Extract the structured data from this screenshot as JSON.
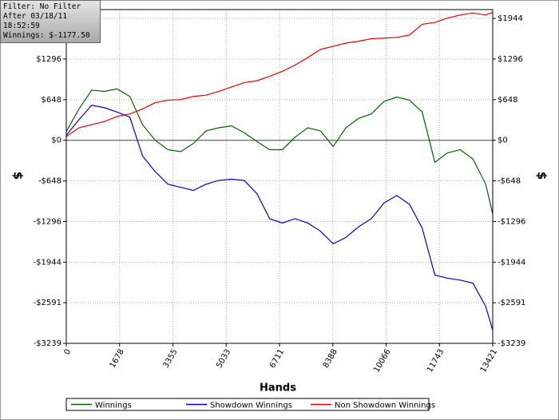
{
  "info": [
    "Filter: No Filter",
    "After 03/18/11 18:52:59",
    "Winnings: $-1177.50"
  ],
  "chart_data": {
    "type": "line",
    "xlabel": "Hands",
    "ylabel": "$",
    "x": [
      0,
      400,
      800,
      1200,
      1600,
      2000,
      2400,
      2800,
      3200,
      3600,
      4000,
      4400,
      4800,
      5200,
      5600,
      6000,
      6400,
      6800,
      7200,
      7600,
      8000,
      8400,
      8800,
      9200,
      9600,
      10000,
      10400,
      10800,
      11200,
      11600,
      12000,
      12400,
      12800,
      13200,
      13421
    ],
    "series": [
      {
        "name": "Winnings",
        "color": "#006400",
        "values": [
          140,
          500,
          800,
          780,
          820,
          700,
          250,
          0,
          -150,
          -180,
          -50,
          150,
          200,
          230,
          120,
          -20,
          -150,
          -150,
          50,
          200,
          150,
          -100,
          200,
          350,
          420,
          620,
          690,
          640,
          450,
          -350,
          -200,
          -150,
          -300,
          -700,
          -1177.5
        ]
      },
      {
        "name": "Showdown Winnings",
        "color": "#0000dd",
        "values": [
          80,
          330,
          560,
          520,
          450,
          370,
          -250,
          -500,
          -700,
          -750,
          -800,
          -700,
          -640,
          -620,
          -640,
          -850,
          -1250,
          -1320,
          -1250,
          -1320,
          -1450,
          -1650,
          -1550,
          -1380,
          -1250,
          -1000,
          -880,
          -1020,
          -1400,
          -2150,
          -2200,
          -2230,
          -2280,
          -2650,
          -3030
        ]
      },
      {
        "name": "Non Showdown Winnings",
        "color": "#ee0000",
        "values": [
          60,
          200,
          250,
          300,
          380,
          420,
          500,
          600,
          640,
          650,
          700,
          720,
          780,
          850,
          920,
          950,
          1020,
          1100,
          1200,
          1320,
          1450,
          1500,
          1550,
          1580,
          1620,
          1630,
          1640,
          1680,
          1850,
          1880,
          1950,
          2000,
          2030,
          2000,
          2040
        ]
      }
    ],
    "xlim": [
      0,
      13421
    ],
    "xticks": [
      0,
      1678,
      3355,
      5033,
      6711,
      8388,
      10066,
      11743,
      13421
    ],
    "ylim": [
      -3239,
      2085
    ],
    "yticks": [
      {
        "value": -3239,
        "label": "-$3239"
      },
      {
        "value": -2591,
        "label": "-$2591"
      },
      {
        "value": -1944,
        "label": "-$1944"
      },
      {
        "value": -1296,
        "label": "-$1296"
      },
      {
        "value": -648,
        "label": "-$648"
      },
      {
        "value": 0,
        "label": "$0"
      },
      {
        "value": 648,
        "label": "$648"
      },
      {
        "value": 1296,
        "label": "$1296"
      },
      {
        "value": 1944,
        "label": "$1944"
      }
    ],
    "grid": true,
    "legend": "bottom"
  }
}
